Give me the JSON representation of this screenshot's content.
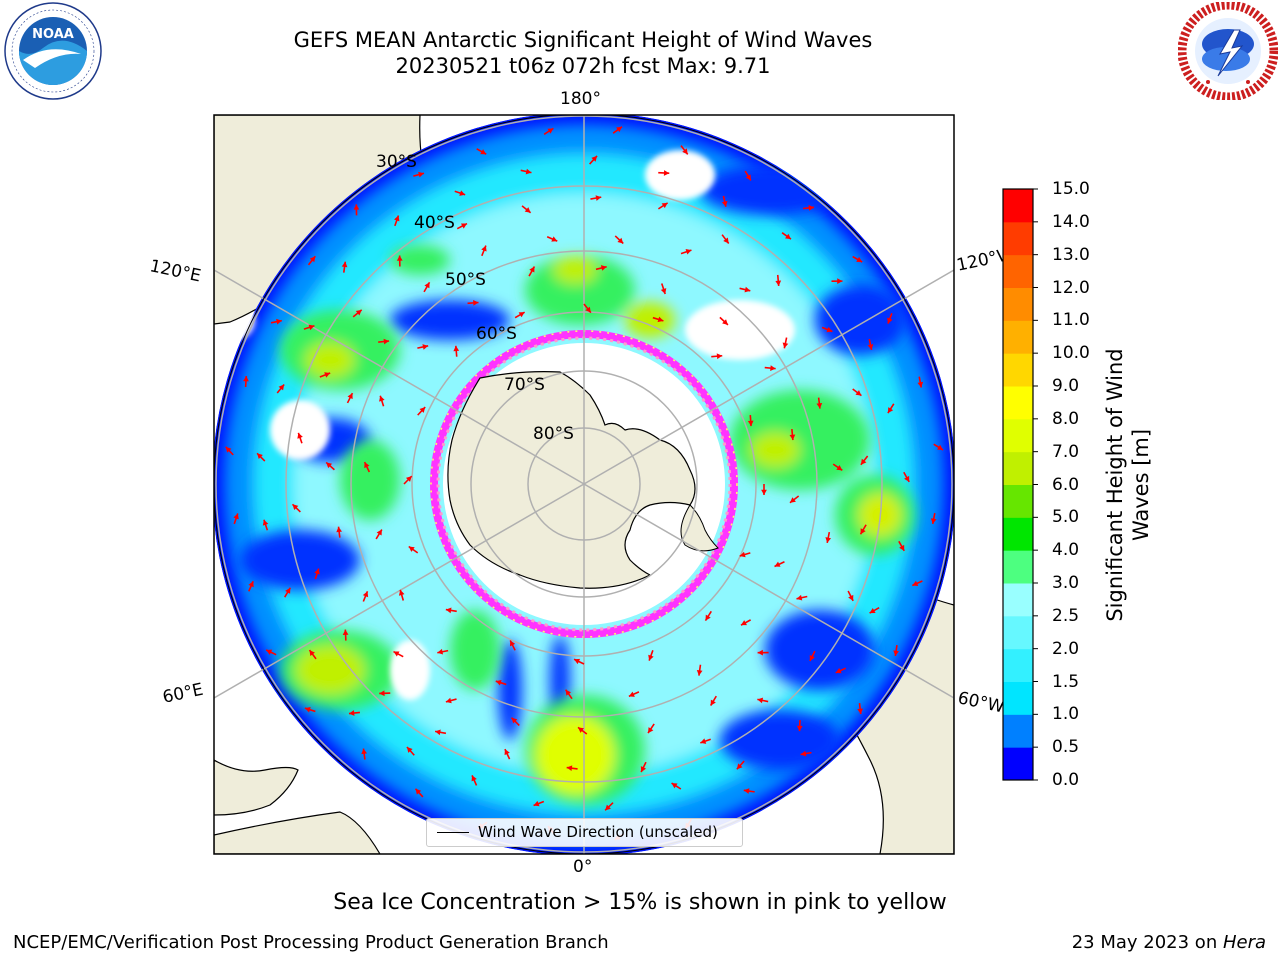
{
  "header": {
    "title_line1": "GEFS MEAN Antarctic Significant Height of Wind Waves",
    "title_line2": "20230521 t06z 072h fcst   Max: 9.71"
  },
  "logos": {
    "noaa": {
      "text": "NOAA",
      "icon": "noaa-logo"
    },
    "nws": {
      "text": "NATIONAL WEATHER SERVICE",
      "icon": "nws-logo"
    }
  },
  "map": {
    "longitude_labels": {
      "top": "180°",
      "bottom": "0°",
      "upper_left": "120°E",
      "upper_right": "120°W",
      "lower_left": "60°E",
      "lower_right": "60°W"
    },
    "latitude_labels": [
      "30°S",
      "40°S",
      "50°S",
      "60°S",
      "70°S",
      "80°S"
    ],
    "legend_label": "Wind Wave Direction (unscaled)",
    "arrow_color": "#ff0000",
    "land_color": "#efedda",
    "sea_ice_colors": [
      "#ff33ff",
      "#ff99cc",
      "#ffff66"
    ]
  },
  "colorbar": {
    "title_line1": "Significant Height of Wind",
    "title_line2": "Waves [m]",
    "ticks": [
      "0.0",
      "0.5",
      "1.0",
      "1.5",
      "2.0",
      "2.5",
      "3.0",
      "4.0",
      "5.0",
      "6.0",
      "7.0",
      "8.0",
      "9.0",
      "10.0",
      "11.0",
      "12.0",
      "13.0",
      "14.0",
      "15.0"
    ],
    "colors": [
      "#0000ff",
      "#0080ff",
      "#00e5ff",
      "#33f0ff",
      "#66f8ff",
      "#99ffff",
      "#4dff80",
      "#00e600",
      "#66e600",
      "#c0f000",
      "#e0ff00",
      "#ffff00",
      "#ffd700",
      "#ffb000",
      "#ff8c00",
      "#ff6400",
      "#ff3c00",
      "#ff0000"
    ]
  },
  "footer": {
    "note": "Sea Ice Concentration > 15% is shown in pink to yellow",
    "left": "NCEP/EMC/Verification Post Processing Product Generation Branch",
    "right_prefix": "23 May 2023 on ",
    "right_host": "Hera"
  }
}
